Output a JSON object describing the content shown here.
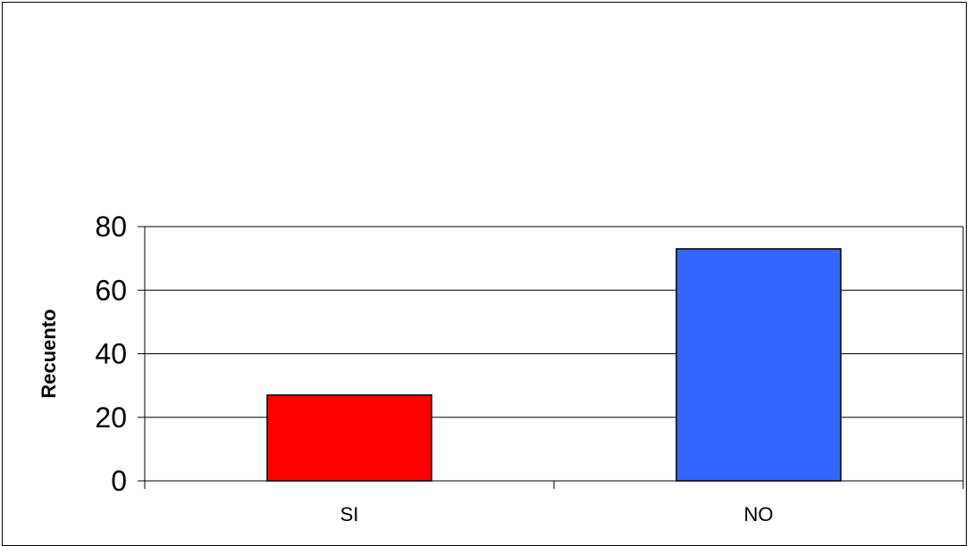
{
  "chart_data": {
    "type": "bar",
    "categories": [
      "SI",
      "NO"
    ],
    "values": [
      27,
      73
    ],
    "colors": [
      "#ff0000",
      "#3366ff"
    ],
    "title": "",
    "xlabel": "",
    "ylabel": "Recuento",
    "ylim": [
      0,
      80
    ],
    "yticks": [
      0,
      20,
      40,
      60,
      80
    ],
    "grid": true,
    "legend": "none"
  }
}
